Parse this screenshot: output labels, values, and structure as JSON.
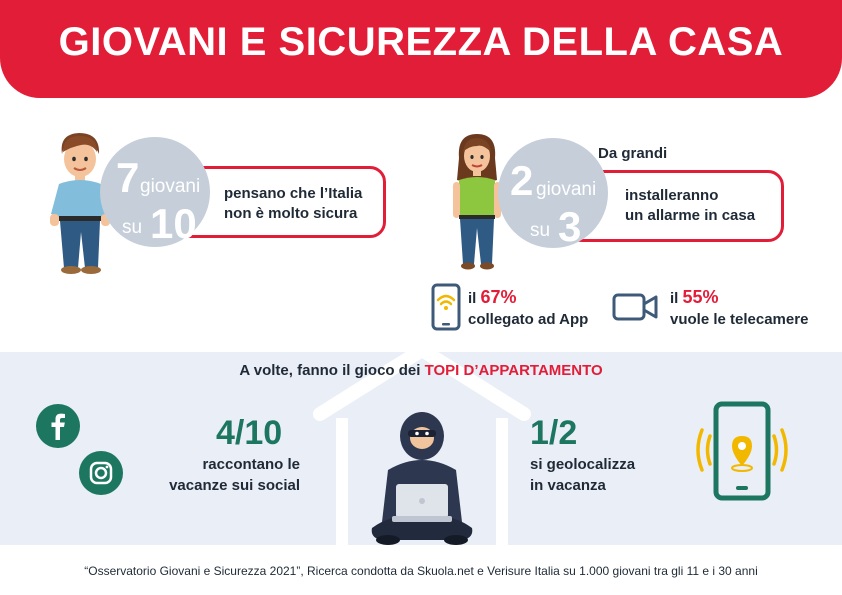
{
  "header": {
    "title": "GIOVANI E SICUREZZA DELLA CASA"
  },
  "stat1": {
    "num": "7",
    "unit": "giovani",
    "prep": "su",
    "den": "10",
    "text1": "pensano che l’Italia",
    "text2": "non è molto sicura"
  },
  "stat2": {
    "pre": "Da grandi",
    "num": "2",
    "unit": "giovani",
    "prep": "su",
    "den": "3",
    "text1": "installeranno",
    "text2": "un allarme in casa"
  },
  "app_stat": {
    "prefix": "il ",
    "pct": "67%",
    "text": "collegato ad App"
  },
  "cam_stat": {
    "prefix": "il ",
    "pct": "55%",
    "text": "vuole le telecamere"
  },
  "panel": {
    "heading_pre": "A volte, fanno il gioco dei ",
    "heading_hl": "TOPI D’APPARTAMENTO",
    "left": {
      "frac": "4/10",
      "line1": "raccontano le",
      "line2": "vacanze sui social"
    },
    "right": {
      "frac": "1/2",
      "line1": "si geolocalizza",
      "line2": "in vacanza"
    }
  },
  "footer": "“Osservatorio Giovani e Sicurezza 2021”, Ricerca condotta da Skuola.net e Verisure Italia su 1.000 giovani tra gli 11 e i 30 anni",
  "colors": {
    "brand_red": "#e21d38",
    "circle_gray": "#c5ced9",
    "green": "#1c7660",
    "panel_bg": "#eaeef7",
    "navy": "#2d3850",
    "phone_blue": "#3f5a78",
    "wifi_yellow": "#f2b800"
  },
  "icons": [
    "boy-illustration",
    "girl-illustration",
    "smartphone-wifi-icon",
    "video-camera-icon",
    "facebook-icon",
    "instagram-icon",
    "house-outline-icon",
    "thief-with-laptop-illustration",
    "phone-location-icon"
  ]
}
